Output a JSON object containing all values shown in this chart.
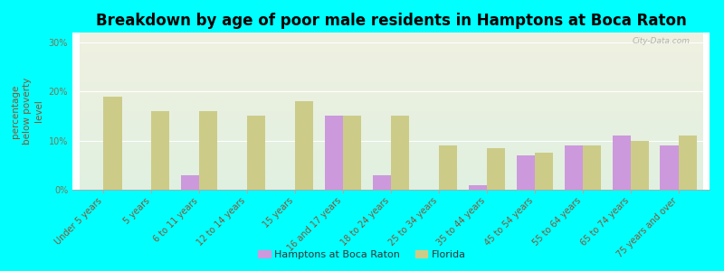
{
  "title": "Breakdown by age of poor male residents in Hamptons at Boca Raton",
  "ylabel": "percentage\nbelow poverty\nlevel",
  "categories": [
    "Under 5 years",
    "5 years",
    "6 to 11 years",
    "12 to 14 years",
    "15 years",
    "16 and 17 years",
    "18 to 24 years",
    "25 to 34 years",
    "35 to 44 years",
    "45 to 54 years",
    "55 to 64 years",
    "65 to 74 years",
    "75 years and over"
  ],
  "hampton_values": [
    0,
    0,
    3,
    0,
    0,
    15,
    3,
    0,
    1,
    7,
    9,
    11,
    9
  ],
  "florida_values": [
    19,
    16,
    16,
    15,
    18,
    15,
    15,
    9,
    8.5,
    7.5,
    9,
    10,
    11
  ],
  "hampton_color": "#cc99dd",
  "florida_color": "#cccc88",
  "background_top": "#f0f0e0",
  "background_bottom": "#e0f0e0",
  "ylim": [
    0,
    32
  ],
  "yticks": [
    0,
    10,
    20,
    30
  ],
  "ytick_labels": [
    "0%",
    "10%",
    "20%",
    "30%"
  ],
  "legend_hampton": "Hamptons at Boca Raton",
  "legend_florida": "Florida",
  "watermark": "City-Data.com",
  "outer_bg": "#00ffff",
  "title_fontsize": 12,
  "axis_label_fontsize": 7.5,
  "tick_label_fontsize": 7,
  "ytick_color": "#777755",
  "xtick_color": "#885533"
}
